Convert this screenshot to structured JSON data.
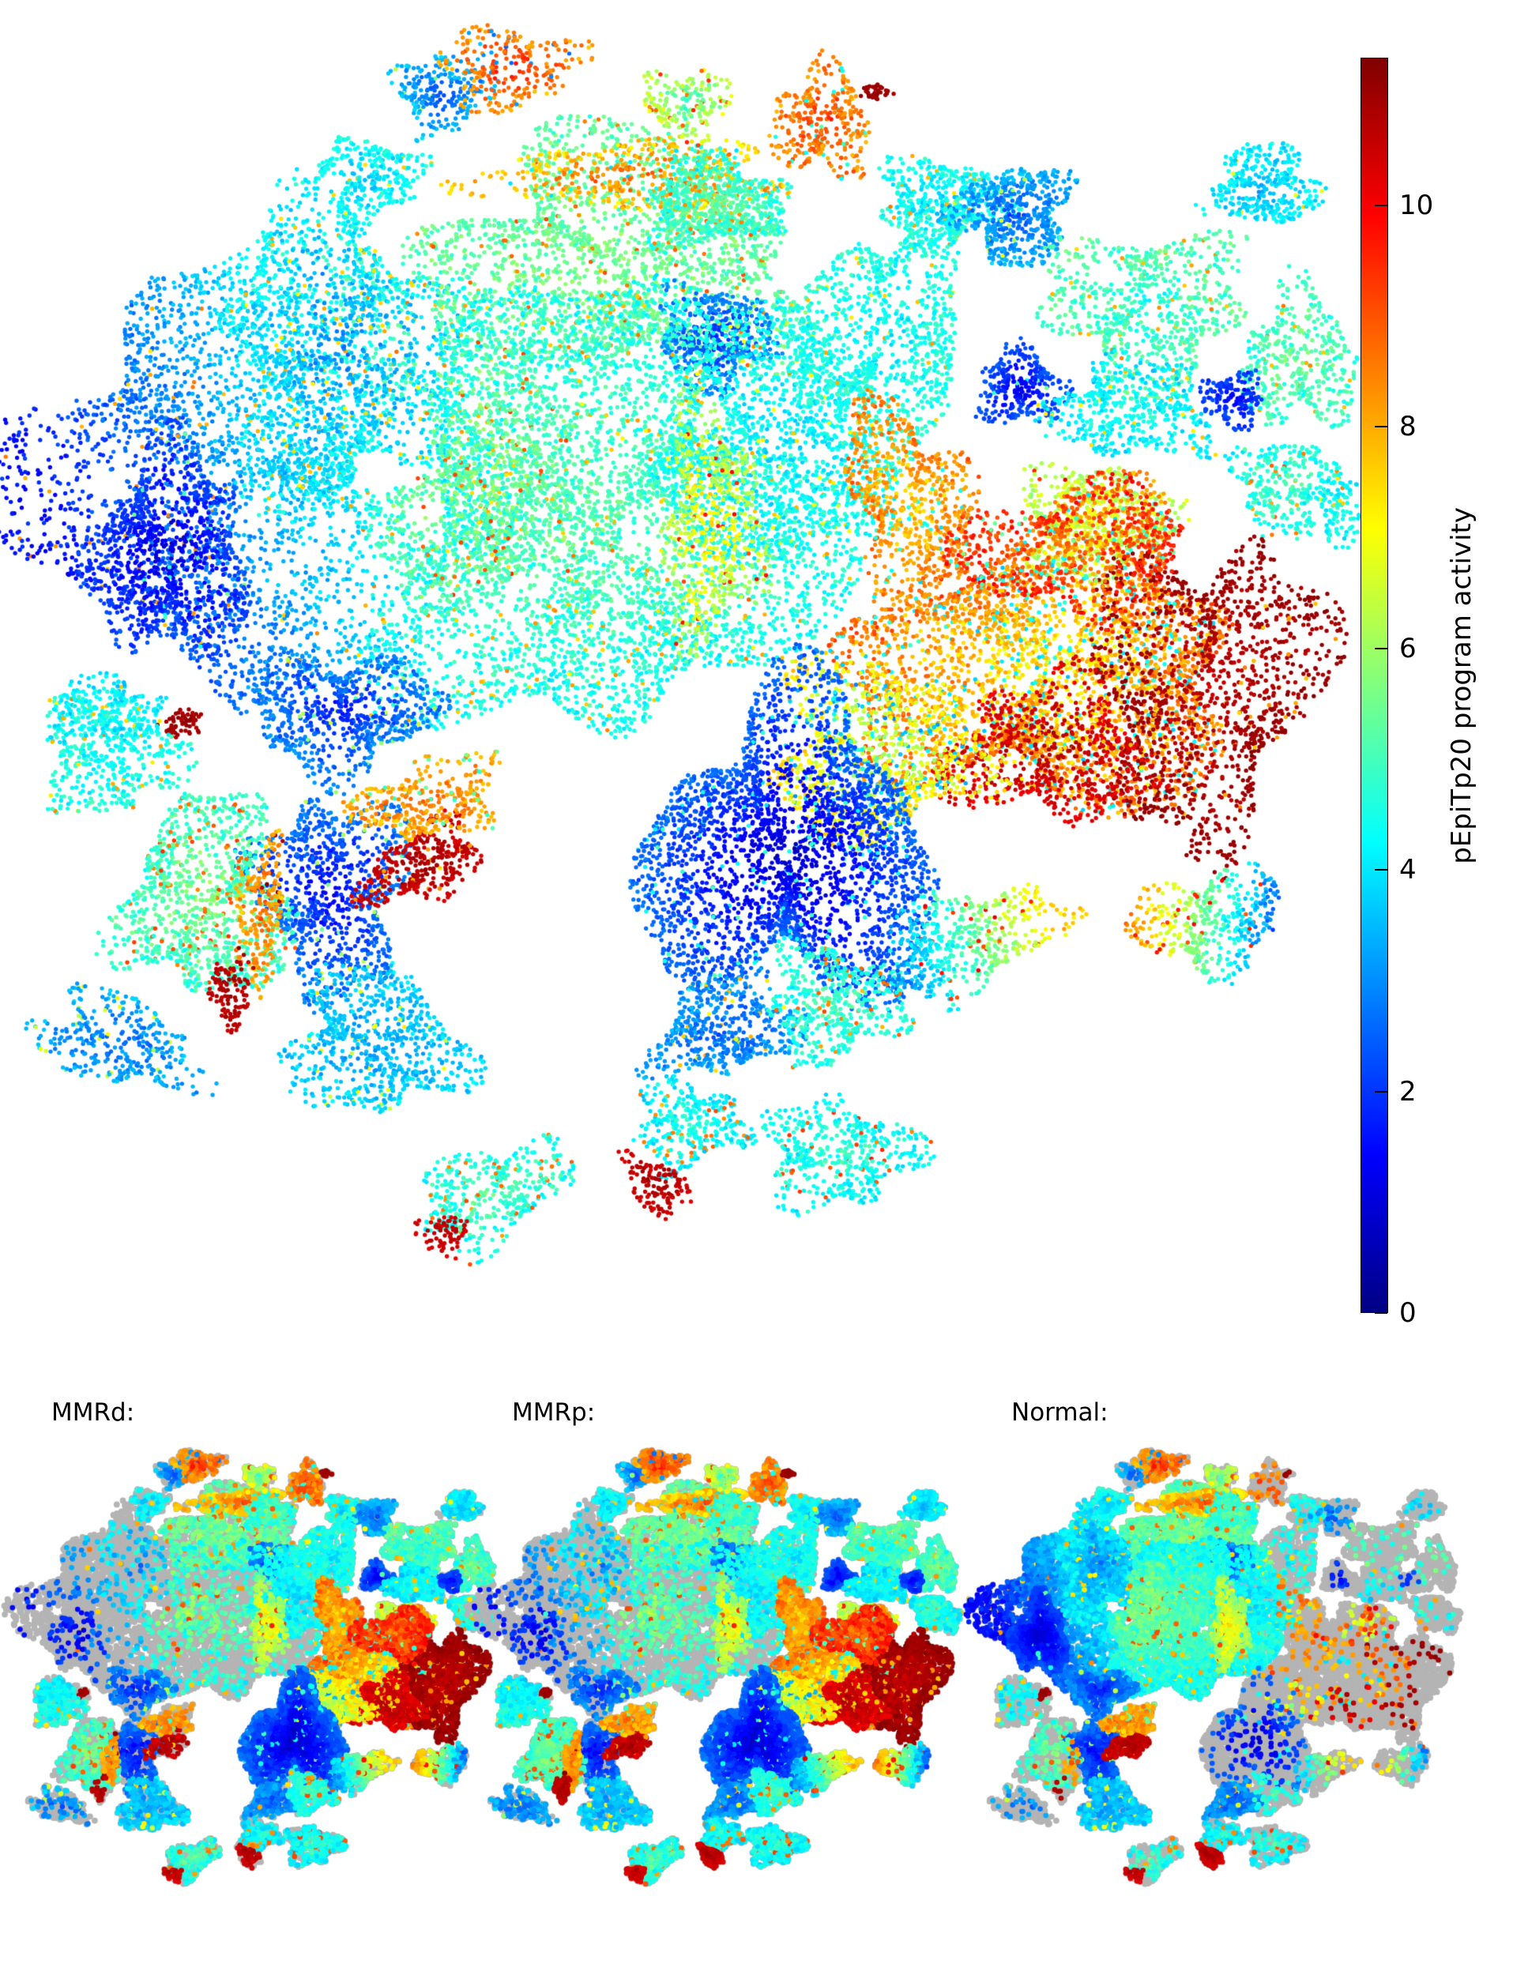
{
  "colorbar": {
    "label": "pEpiTp20 program activity",
    "ticks": [
      0,
      2,
      4,
      6,
      8,
      10
    ],
    "vmin": 0,
    "vmax": 11.33,
    "colormap": [
      [
        0,
        "#000083"
      ],
      [
        0.125,
        "#0000ff"
      ],
      [
        0.375,
        "#00ffff"
      ],
      [
        0.625,
        "#ffff00"
      ],
      [
        0.875,
        "#ff0000"
      ],
      [
        1,
        "#800000"
      ]
    ]
  },
  "panels": [
    {
      "label": "MMRd:"
    },
    {
      "label": "MMRp:"
    },
    {
      "label": "Normal:"
    }
  ],
  "chart_data": {
    "type": "scatter",
    "embedding": "t-SNE of single cells colored by pEpiTp20 program activity (jet colormap), with three subset overlays (MMRd, MMRp, Normal) over a grey silhouette of the full embedding",
    "color_variable": "pEpiTp20 program activity",
    "value_range": [
      0,
      11.33
    ],
    "silhouette_color": "#b4b4b4",
    "cluster_fields": [
      "cx",
      "cy",
      "rx",
      "ry",
      "rot_deg",
      "n_points",
      "value_core",
      "value_edge",
      "value_spread",
      "fleck_prob",
      "fleck_value",
      "grad_x",
      "grad_y",
      "density_mmrd",
      "density_mmrp",
      "density_normal"
    ],
    "clusters": [
      [
        300,
        600,
        250,
        290,
        0,
        2800,
        1.5,
        5.0,
        0.8,
        0.04,
        8,
        0.9,
        -0.45,
        0.06,
        0.1,
        0.85
      ],
      [
        215,
        700,
        100,
        130,
        0,
        950,
        0.8,
        2.2,
        0.5,
        0.02,
        5,
        0,
        0,
        0.06,
        0.08,
        0.9
      ],
      [
        430,
        450,
        150,
        190,
        0,
        1400,
        3.0,
        4.2,
        0.9,
        0.05,
        7.5,
        0,
        0,
        0.06,
        0.1,
        0.85
      ],
      [
        560,
        120,
        60,
        48,
        0,
        220,
        2.2,
        3.6,
        0.7,
        0.04,
        6,
        0,
        0,
        0.3,
        0.5,
        0.2
      ],
      [
        645,
        85,
        85,
        52,
        0,
        260,
        9.5,
        8.2,
        1.0,
        0.1,
        3,
        0,
        0,
        0.5,
        0.85,
        0.5
      ],
      [
        780,
        330,
        235,
        150,
        0,
        2100,
        5.6,
        5.2,
        0.9,
        0.05,
        8.5,
        0,
        0,
        0.35,
        0.45,
        0.8
      ],
      [
        800,
        225,
        190,
        45,
        0,
        420,
        8.8,
        7.5,
        1.0,
        0.06,
        4,
        0,
        0,
        0.5,
        0.7,
        0.85
      ],
      [
        905,
        425,
        75,
        65,
        0,
        420,
        1.8,
        3.0,
        0.6,
        0.03,
        6,
        0,
        0,
        0.3,
        0.4,
        0.6
      ],
      [
        1040,
        155,
        62,
        68,
        0,
        320,
        9.3,
        8.3,
        1.0,
        0.07,
        4.5,
        0,
        0,
        0.5,
        0.85,
        0.1
      ],
      [
        1107,
        117,
        20,
        9,
        0,
        40,
        11.1,
        11.0,
        0.15,
        0,
        0,
        0,
        0,
        0.3,
        0.9,
        0.1
      ],
      [
        905,
        255,
        88,
        58,
        0,
        560,
        5.3,
        4.6,
        0.8,
        0.06,
        8.5,
        0,
        0,
        0.4,
        0.6,
        0.5
      ],
      [
        1190,
        255,
        78,
        56,
        0,
        480,
        3.8,
        4.6,
        0.8,
        0.05,
        8,
        0,
        0,
        0.5,
        0.6,
        0.15
      ],
      [
        1283,
        272,
        72,
        62,
        0,
        520,
        2.4,
        3.4,
        0.7,
        0.03,
        6.5,
        0,
        0,
        0.6,
        0.7,
        0.08
      ],
      [
        1600,
        235,
        68,
        52,
        0,
        340,
        3.4,
        4.2,
        0.8,
        0.04,
        7,
        0,
        0,
        0.5,
        0.75,
        0.05
      ],
      [
        1450,
        385,
        125,
        95,
        0,
        720,
        4.6,
        5.2,
        0.9,
        0.06,
        8,
        0,
        0,
        0.7,
        0.8,
        0.05
      ],
      [
        1645,
        455,
        72,
        85,
        0,
        420,
        5.4,
        4.8,
        0.9,
        0.05,
        8,
        0,
        0,
        0.65,
        0.8,
        0.05
      ],
      [
        1292,
        492,
        58,
        48,
        0,
        300,
        1.2,
        2.4,
        0.5,
        0.02,
        5,
        0,
        0,
        0.5,
        0.7,
        0.05
      ],
      [
        1430,
        520,
        105,
        62,
        0,
        480,
        4.4,
        4.0,
        0.8,
        0.04,
        7.5,
        0,
        0,
        0.65,
        0.75,
        0.05
      ],
      [
        1625,
        615,
        62,
        62,
        0,
        300,
        5.0,
        4.4,
        0.9,
        0.07,
        8.5,
        0,
        0,
        0.6,
        0.8,
        0.05
      ],
      [
        1700,
        645,
        32,
        48,
        0,
        120,
        4.5,
        4.2,
        0.7,
        0.05,
        7.5,
        0,
        0,
        0.5,
        0.6,
        0.05
      ],
      [
        760,
        660,
        270,
        280,
        0,
        4200,
        5.2,
        4.4,
        0.9,
        0.06,
        7.8,
        0,
        0,
        0.1,
        0.12,
        0.8
      ],
      [
        985,
        565,
        125,
        165,
        0,
        1200,
        4.0,
        4.4,
        0.8,
        0.04,
        7,
        0,
        0,
        0.5,
        0.45,
        0.3
      ],
      [
        1120,
        425,
        105,
        145,
        10,
        950,
        4.2,
        4.6,
        0.8,
        0.04,
        7.5,
        0,
        0,
        0.65,
        0.6,
        0.1
      ],
      [
        1150,
        640,
        72,
        135,
        -15,
        680,
        7.6,
        8.6,
        1.0,
        0.08,
        4.5,
        0,
        0,
        0.8,
        0.75,
        0.08
      ],
      [
        1385,
        660,
        95,
        72,
        0,
        560,
        7.0,
        6.2,
        1.0,
        0.06,
        9.5,
        0,
        0,
        0.75,
        0.8,
        0.05
      ],
      [
        620,
        620,
        125,
        165,
        20,
        1050,
        5.8,
        5.0,
        1.1,
        0.07,
        9,
        0,
        0,
        0.12,
        0.15,
        0.8
      ],
      [
        900,
        665,
        62,
        150,
        0,
        560,
        7.2,
        6.0,
        1.0,
        0.06,
        9.5,
        0,
        0,
        0.4,
        0.4,
        0.6
      ],
      [
        1330,
        840,
        240,
        180,
        -10,
        3000,
        7.2,
        8.6,
        1.3,
        0.12,
        4.2,
        0,
        0,
        0.85,
        0.9,
        0.04
      ],
      [
        1530,
        870,
        140,
        190,
        15,
        1280,
        10.6,
        11.1,
        0.4,
        0.05,
        8,
        0,
        0,
        0.8,
        0.95,
        0.03
      ],
      [
        1330,
        950,
        130,
        90,
        0,
        720,
        10.8,
        10.2,
        0.5,
        0.08,
        7.5,
        0,
        0,
        0.8,
        0.95,
        0.03
      ],
      [
        1360,
        700,
        150,
        80,
        0,
        640,
        8.8,
        9.6,
        1.0,
        0.08,
        5,
        0,
        0,
        0.8,
        0.9,
        0.03
      ],
      [
        1110,
        950,
        130,
        115,
        0,
        880,
        6.0,
        7.4,
        1.2,
        0.12,
        3.5,
        0,
        0,
        0.8,
        0.85,
        0.04
      ],
      [
        1000,
        1080,
        185,
        185,
        0,
        2900,
        0.7,
        2.6,
        0.6,
        0.06,
        4.5,
        0,
        0,
        0.75,
        0.8,
        0.06
      ],
      [
        430,
        900,
        120,
        75,
        0,
        720,
        1.6,
        3.0,
        0.7,
        0.05,
        6,
        0,
        0,
        0.3,
        0.35,
        0.7
      ],
      [
        420,
        1130,
        95,
        125,
        0,
        880,
        1.4,
        2.8,
        0.7,
        0.04,
        6,
        0,
        0,
        0.3,
        0.35,
        0.7
      ],
      [
        260,
        1140,
        105,
        125,
        0,
        1050,
        5.6,
        4.8,
        1.0,
        0.08,
        8.8,
        0,
        0,
        0.25,
        0.8,
        0.15
      ],
      [
        330,
        1160,
        28,
        95,
        5,
        210,
        8.8,
        8.0,
        0.8,
        0.06,
        11,
        0,
        0,
        0.3,
        0.85,
        0.1
      ],
      [
        292,
        1255,
        26,
        42,
        0,
        110,
        11.0,
        10.6,
        0.4,
        0,
        0,
        0,
        0,
        0.2,
        0.9,
        0.05
      ],
      [
        228,
        916,
        28,
        18,
        -20,
        60,
        11.1,
        10.9,
        0.3,
        0,
        0,
        0,
        0,
        0.2,
        0.6,
        0.3
      ],
      [
        535,
        1095,
        85,
        42,
        -25,
        340,
        10.9,
        10.5,
        0.5,
        0.05,
        8,
        0,
        0,
        0.25,
        0.7,
        0.9
      ],
      [
        545,
        1010,
        95,
        48,
        -15,
        340,
        8.6,
        8.0,
        0.9,
        0.08,
        5,
        0,
        0,
        0.3,
        0.6,
        0.8
      ],
      [
        140,
        960,
        88,
        72,
        0,
        440,
        4.2,
        4.6,
        0.8,
        0.06,
        8,
        0,
        0,
        0.45,
        0.75,
        0.1
      ],
      [
        130,
        898,
        72,
        40,
        0,
        240,
        4.4,
        4.0,
        0.8,
        0.04,
        7.5,
        0,
        0,
        0.35,
        0.6,
        0.15
      ],
      [
        150,
        1320,
        105,
        55,
        15,
        340,
        2.6,
        3.4,
        0.8,
        0.05,
        6.5,
        0,
        0,
        0.2,
        0.5,
        0.08
      ],
      [
        475,
        1320,
        110,
        92,
        0,
        720,
        3.2,
        3.8,
        0.8,
        0.05,
        7,
        0,
        0,
        0.45,
        0.55,
        0.6
      ],
      [
        920,
        1300,
        95,
        60,
        -15,
        480,
        2.4,
        3.2,
        0.8,
        0.06,
        7.5,
        0,
        0,
        0.5,
        0.7,
        0.7
      ],
      [
        1055,
        1270,
        85,
        72,
        0,
        480,
        5.0,
        4.4,
        0.8,
        0.07,
        8.5,
        0,
        0,
        0.5,
        0.8,
        0.1
      ],
      [
        1230,
        1190,
        115,
        62,
        -20,
        520,
        2.8,
        7.6,
        1.0,
        0.05,
        9.5,
        1,
        0,
        0.5,
        0.8,
        0.1
      ],
      [
        1530,
        1165,
        95,
        62,
        -10,
        440,
        2.4,
        8.2,
        1.0,
        0.05,
        9.5,
        -1,
        -0.2,
        0.6,
        0.7,
        0.1
      ],
      [
        870,
        1425,
        68,
        55,
        0,
        340,
        4.6,
        4.0,
        0.8,
        0.08,
        8.5,
        0,
        0,
        0.4,
        0.75,
        0.3
      ],
      [
        830,
        1500,
        45,
        30,
        35,
        130,
        10.9,
        10.5,
        0.4,
        0,
        0,
        0,
        0,
        0.3,
        0.8,
        0.8
      ],
      [
        1060,
        1460,
        95,
        68,
        0,
        480,
        4.8,
        4.2,
        0.9,
        0.08,
        9,
        0,
        0,
        0.45,
        0.8,
        0.2
      ],
      [
        625,
        1510,
        100,
        58,
        -25,
        420,
        5.2,
        4.4,
        0.9,
        0.06,
        8.5,
        0,
        0,
        0.4,
        0.75,
        0.2
      ],
      [
        560,
        1562,
        32,
        24,
        0,
        70,
        10.8,
        10.4,
        0.4,
        0,
        0,
        0,
        0,
        0.3,
        0.8,
        0.3
      ],
      [
        1560,
        505,
        40,
        34,
        0,
        160,
        1.4,
        2.2,
        0.5,
        0,
        0,
        0,
        0,
        0.5,
        0.6,
        0.05
      ],
      [
        870,
        130,
        55,
        42,
        0,
        200,
        5.2,
        6.5,
        1.2,
        0.1,
        9,
        0,
        0,
        0.4,
        0.7,
        0.3
      ],
      [
        470,
        225,
        62,
        52,
        0,
        300,
        3.8,
        4.4,
        0.8,
        0.04,
        7.5,
        0,
        0,
        0.2,
        0.3,
        0.6
      ]
    ]
  }
}
